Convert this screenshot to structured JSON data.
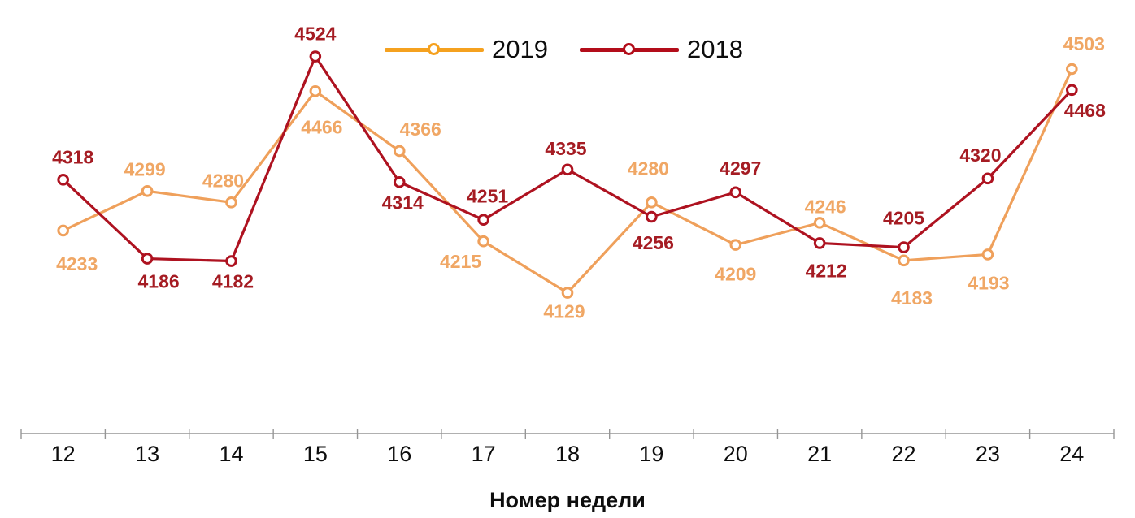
{
  "chart_data": {
    "type": "line",
    "title": "",
    "xlabel": "Номер недели",
    "ylabel": "",
    "categories": [
      12,
      13,
      14,
      15,
      16,
      17,
      18,
      19,
      20,
      21,
      22,
      23,
      24
    ],
    "series": [
      {
        "name": "2019",
        "color": "#EFA05B",
        "legend_color": "#F5A11F",
        "label_color": "#F0A765",
        "values": [
          4233,
          4299,
          4280,
          4466,
          4366,
          4215,
          4129,
          4280,
          4209,
          4246,
          4183,
          4193,
          4503
        ],
        "label_offsets": [
          [
            17,
            41
          ],
          [
            -3,
            -27
          ],
          [
            -10,
            -27
          ],
          [
            8,
            44
          ],
          [
            26,
            -27
          ],
          [
            -28,
            25
          ],
          [
            -4,
            23
          ],
          [
            -4,
            -42
          ],
          [
            0,
            36
          ],
          [
            7,
            -20
          ],
          [
            10,
            46
          ],
          [
            1,
            35
          ],
          [
            15,
            -31
          ]
        ]
      },
      {
        "name": "2018",
        "color": "#AE1220",
        "legend_color": "#B30D1A",
        "label_color": "#A51C23",
        "values": [
          4318,
          4186,
          4182,
          4524,
          4314,
          4251,
          4335,
          4256,
          4297,
          4212,
          4205,
          4320,
          4468
        ],
        "label_offsets": [
          [
            12,
            -28
          ],
          [
            14,
            28
          ],
          [
            2,
            25
          ],
          [
            0,
            -28
          ],
          [
            4,
            25
          ],
          [
            5,
            -29
          ],
          [
            -2,
            -26
          ],
          [
            2,
            32
          ],
          [
            6,
            -30
          ],
          [
            8,
            34
          ],
          [
            0,
            -36
          ],
          [
            -9,
            -29
          ],
          [
            16,
            25
          ]
        ]
      }
    ],
    "ylim": [
      3895,
      4560
    ],
    "grid": false,
    "legend_position": "top-center",
    "axis_color": "#969696",
    "tick_label_color": "#0d0d0d"
  }
}
